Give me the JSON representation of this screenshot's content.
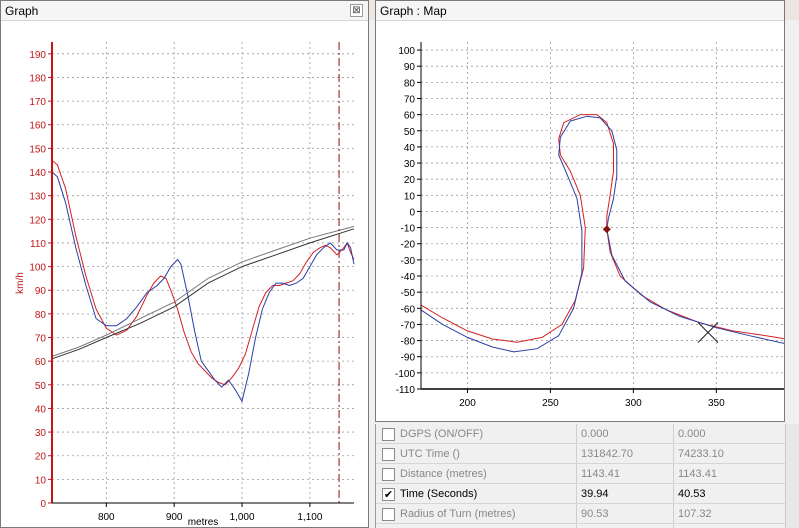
{
  "graph_window": {
    "title": "Graph",
    "close_glyph": "⊠",
    "y_axis_label": "km/h",
    "x_axis_label": "metres",
    "y_ticks": [
      "190",
      "180",
      "170",
      "160",
      "150",
      "140",
      "130",
      "120",
      "110",
      "100",
      "90",
      "80",
      "70",
      "60",
      "50",
      "40",
      "30",
      "20",
      "10",
      "0"
    ],
    "x_ticks": [
      "800",
      "900",
      "1,000",
      "1,100"
    ]
  },
  "map_window": {
    "title": "Graph : Map",
    "y_ticks": [
      "100",
      "90",
      "80",
      "70",
      "60",
      "50",
      "40",
      "30",
      "20",
      "10",
      "0",
      "-10",
      "-20",
      "-30",
      "-40",
      "-50",
      "-60",
      "-70",
      "-80",
      "-90",
      "-100",
      "-110"
    ],
    "x_ticks": [
      "200",
      "250",
      "300",
      "350"
    ]
  },
  "channels": [
    {
      "name": "DGPS (ON/OFF)",
      "value_a": "0.000",
      "value_b": "0.000",
      "checked": false
    },
    {
      "name": "UTC Time ()",
      "value_a": "131842.70",
      "value_b": "74233.10",
      "checked": false
    },
    {
      "name": "Distance (metres)",
      "value_a": "1143.41",
      "value_b": "1143.41",
      "checked": false
    },
    {
      "name": "Time (Seconds)",
      "value_a": "39.94",
      "value_b": "40.53",
      "checked": true
    },
    {
      "name": "Radius of Turn (metres)",
      "value_a": "90.53",
      "value_b": "107.32",
      "checked": false
    }
  ],
  "colors": {
    "red_run": "#d42020",
    "blue_run": "#2a3fa6",
    "cursor": "#8a1010"
  },
  "chart_data": [
    {
      "type": "line",
      "title": "",
      "xlabel": "metres",
      "ylabel": "km/h",
      "xlim": [
        720,
        1165
      ],
      "ylim": [
        0,
        195
      ],
      "grid": true,
      "cursor_x": 1143,
      "series": [
        {
          "color": "#d42020",
          "points": [
            [
              720,
              145
            ],
            [
              728,
              143
            ],
            [
              740,
              133
            ],
            [
              755,
              113
            ],
            [
              770,
              96
            ],
            [
              785,
              82
            ],
            [
              800,
              74
            ],
            [
              815,
              71
            ],
            [
              830,
              73
            ],
            [
              845,
              79
            ],
            [
              860,
              88
            ],
            [
              870,
              93
            ],
            [
              880,
              96
            ],
            [
              888,
              95
            ],
            [
              895,
              90
            ],
            [
              905,
              82
            ],
            [
              915,
              72
            ],
            [
              925,
              64
            ],
            [
              935,
              59
            ],
            [
              945,
              56
            ],
            [
              955,
              53
            ],
            [
              965,
              51
            ],
            [
              975,
              50
            ],
            [
              985,
              53
            ],
            [
              995,
              57
            ],
            [
              1005,
              63
            ],
            [
              1015,
              73
            ],
            [
              1025,
              83
            ],
            [
              1035,
              89
            ],
            [
              1045,
              92
            ],
            [
              1055,
              92
            ],
            [
              1065,
              93
            ],
            [
              1075,
              94
            ],
            [
              1085,
              97
            ],
            [
              1095,
              102
            ],
            [
              1105,
              106
            ],
            [
              1115,
              108
            ],
            [
              1123,
              109
            ],
            [
              1130,
              108
            ],
            [
              1140,
              105
            ],
            [
              1150,
              108
            ],
            [
              1155,
              110
            ],
            [
              1160,
              106
            ],
            [
              1165,
              103
            ]
          ]
        },
        {
          "color": "#2a3fa6",
          "points": [
            [
              720,
              140
            ],
            [
              728,
              138
            ],
            [
              740,
              127
            ],
            [
              755,
              108
            ],
            [
              770,
              92
            ],
            [
              785,
              78
            ],
            [
              800,
              75
            ],
            [
              815,
              75
            ],
            [
              830,
              78
            ],
            [
              845,
              83
            ],
            [
              860,
              89
            ],
            [
              875,
              92
            ],
            [
              885,
              95
            ],
            [
              895,
              100
            ],
            [
              905,
              103
            ],
            [
              910,
              101
            ],
            [
              920,
              88
            ],
            [
              930,
              73
            ],
            [
              940,
              60
            ],
            [
              950,
              56
            ],
            [
              960,
              52
            ],
            [
              970,
              49
            ],
            [
              980,
              52
            ],
            [
              990,
              48
            ],
            [
              1000,
              43
            ],
            [
              1010,
              55
            ],
            [
              1020,
              70
            ],
            [
              1030,
              82
            ],
            [
              1040,
              89
            ],
            [
              1050,
              93
            ],
            [
              1060,
              93
            ],
            [
              1070,
              92
            ],
            [
              1080,
              93
            ],
            [
              1090,
              95
            ],
            [
              1100,
              100
            ],
            [
              1110,
              105
            ],
            [
              1120,
              108
            ],
            [
              1130,
              110
            ],
            [
              1140,
              107
            ],
            [
              1150,
              107
            ],
            [
              1155,
              110
            ],
            [
              1160,
              108
            ],
            [
              1165,
              101
            ]
          ]
        },
        {
          "color": "#333333",
          "points": [
            [
              720,
              61
            ],
            [
              760,
              65
            ],
            [
              800,
              70
            ],
            [
              850,
              76
            ],
            [
              900,
              83
            ],
            [
              950,
              93
            ],
            [
              1000,
              100
            ],
            [
              1050,
              105
            ],
            [
              1100,
              110
            ],
            [
              1165,
              116
            ]
          ]
        },
        {
          "color": "#777777",
          "points": [
            [
              720,
              62
            ],
            [
              760,
              66
            ],
            [
              800,
              71
            ],
            [
              850,
              78
            ],
            [
              900,
              85
            ],
            [
              950,
              95
            ],
            [
              1000,
              102
            ],
            [
              1050,
              107
            ],
            [
              1100,
              112
            ],
            [
              1165,
              117
            ]
          ]
        }
      ]
    },
    {
      "type": "line",
      "title": "",
      "xlim": [
        172,
        392
      ],
      "ylim": [
        -110,
        105
      ],
      "grid": true,
      "current_position": [
        284,
        -11
      ],
      "end_marker": [
        345,
        -75
      ],
      "series": [
        {
          "color": "#d42020",
          "points": [
            [
              172,
              -58
            ],
            [
              185,
              -66
            ],
            [
              200,
              -74
            ],
            [
              215,
              -79
            ],
            [
              230,
              -81
            ],
            [
              245,
              -78
            ],
            [
              257,
              -70
            ],
            [
              265,
              -55
            ],
            [
              270,
              -35
            ],
            [
              271,
              -10
            ],
            [
              268,
              10
            ],
            [
              262,
              25
            ],
            [
              256,
              35
            ],
            [
              255,
              45
            ],
            [
              258,
              55
            ],
            [
              268,
              60
            ],
            [
              278,
              60
            ],
            [
              284,
              55
            ],
            [
              288,
              42
            ],
            [
              288,
              25
            ],
            [
              286,
              10
            ],
            [
              284,
              -3
            ],
            [
              284,
              -11
            ],
            [
              286,
              -25
            ],
            [
              292,
              -40
            ],
            [
              305,
              -52
            ],
            [
              320,
              -61
            ],
            [
              340,
              -69
            ],
            [
              360,
              -74
            ],
            [
              380,
              -77
            ],
            [
              392,
              -79
            ]
          ]
        },
        {
          "color": "#2a3fa6",
          "points": [
            [
              172,
              -61
            ],
            [
              185,
              -70
            ],
            [
              200,
              -78
            ],
            [
              215,
              -84
            ],
            [
              228,
              -87
            ],
            [
              242,
              -85
            ],
            [
              255,
              -77
            ],
            [
              264,
              -60
            ],
            [
              269,
              -38
            ],
            [
              269,
              -12
            ],
            [
              266,
              8
            ],
            [
              260,
              23
            ],
            [
              255,
              35
            ],
            [
              256,
              46
            ],
            [
              262,
              56
            ],
            [
              272,
              59
            ],
            [
              280,
              58
            ],
            [
              287,
              50
            ],
            [
              290,
              38
            ],
            [
              290,
              22
            ],
            [
              288,
              8
            ],
            [
              285,
              -4
            ],
            [
              284,
              -11
            ],
            [
              287,
              -27
            ],
            [
              295,
              -43
            ],
            [
              310,
              -56
            ],
            [
              328,
              -65
            ],
            [
              350,
              -72
            ],
            [
              370,
              -77
            ],
            [
              392,
              -82
            ]
          ]
        }
      ]
    }
  ]
}
